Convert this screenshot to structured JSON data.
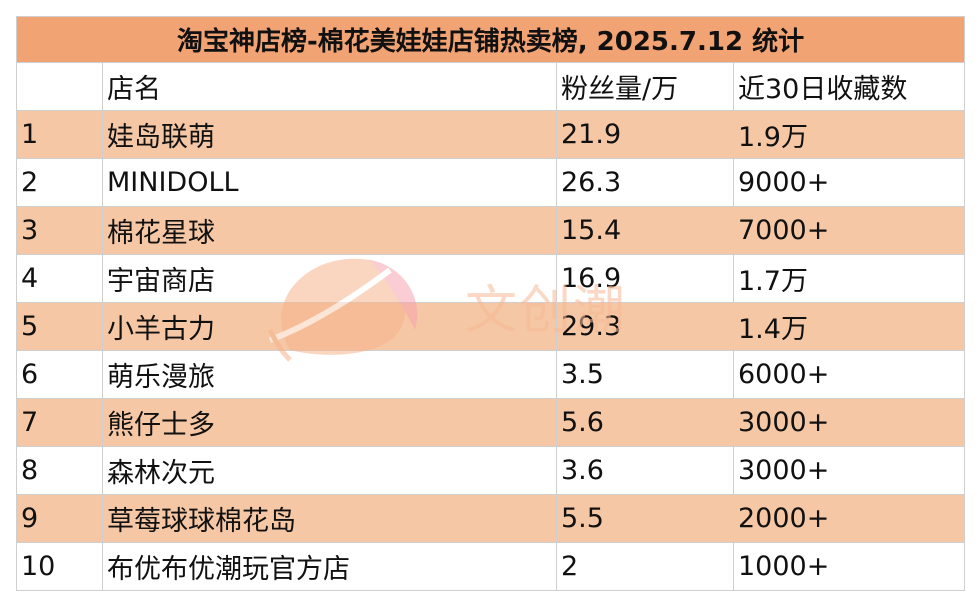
{
  "chart_data": {
    "type": "table",
    "title": "淘宝神店榜-棉花美娃娃店铺热卖榜, 2025.7.12 统计",
    "columns": [
      "",
      "店名",
      "粉丝量/万",
      "近30日收藏数"
    ],
    "rows": [
      [
        "1",
        "娃岛联萌",
        "21.9",
        "1.9万"
      ],
      [
        "2",
        "MINIDOLL",
        "26.3",
        "9000+"
      ],
      [
        "3",
        "棉花星球",
        "15.4",
        "7000+"
      ],
      [
        "4",
        "宇宙商店",
        "16.9",
        "1.7万"
      ],
      [
        "5",
        "小羊古力",
        "29.3",
        "1.4万"
      ],
      [
        "6",
        "萌乐漫旅",
        "3.5",
        "6000+"
      ],
      [
        "7",
        "熊仔士多",
        "5.6",
        "3000+"
      ],
      [
        "8",
        "森林次元",
        "3.6",
        "3000+"
      ],
      [
        "9",
        "草莓球球棉花岛",
        "5.5",
        "2000+"
      ],
      [
        "10",
        "布优布优潮玩官方店",
        "2",
        "1000+"
      ]
    ],
    "colors": {
      "header": "#f2a374",
      "stripe": "#f6c7a4",
      "plain": "#ffffff"
    }
  },
  "watermark": {
    "text": "文创潮"
  }
}
